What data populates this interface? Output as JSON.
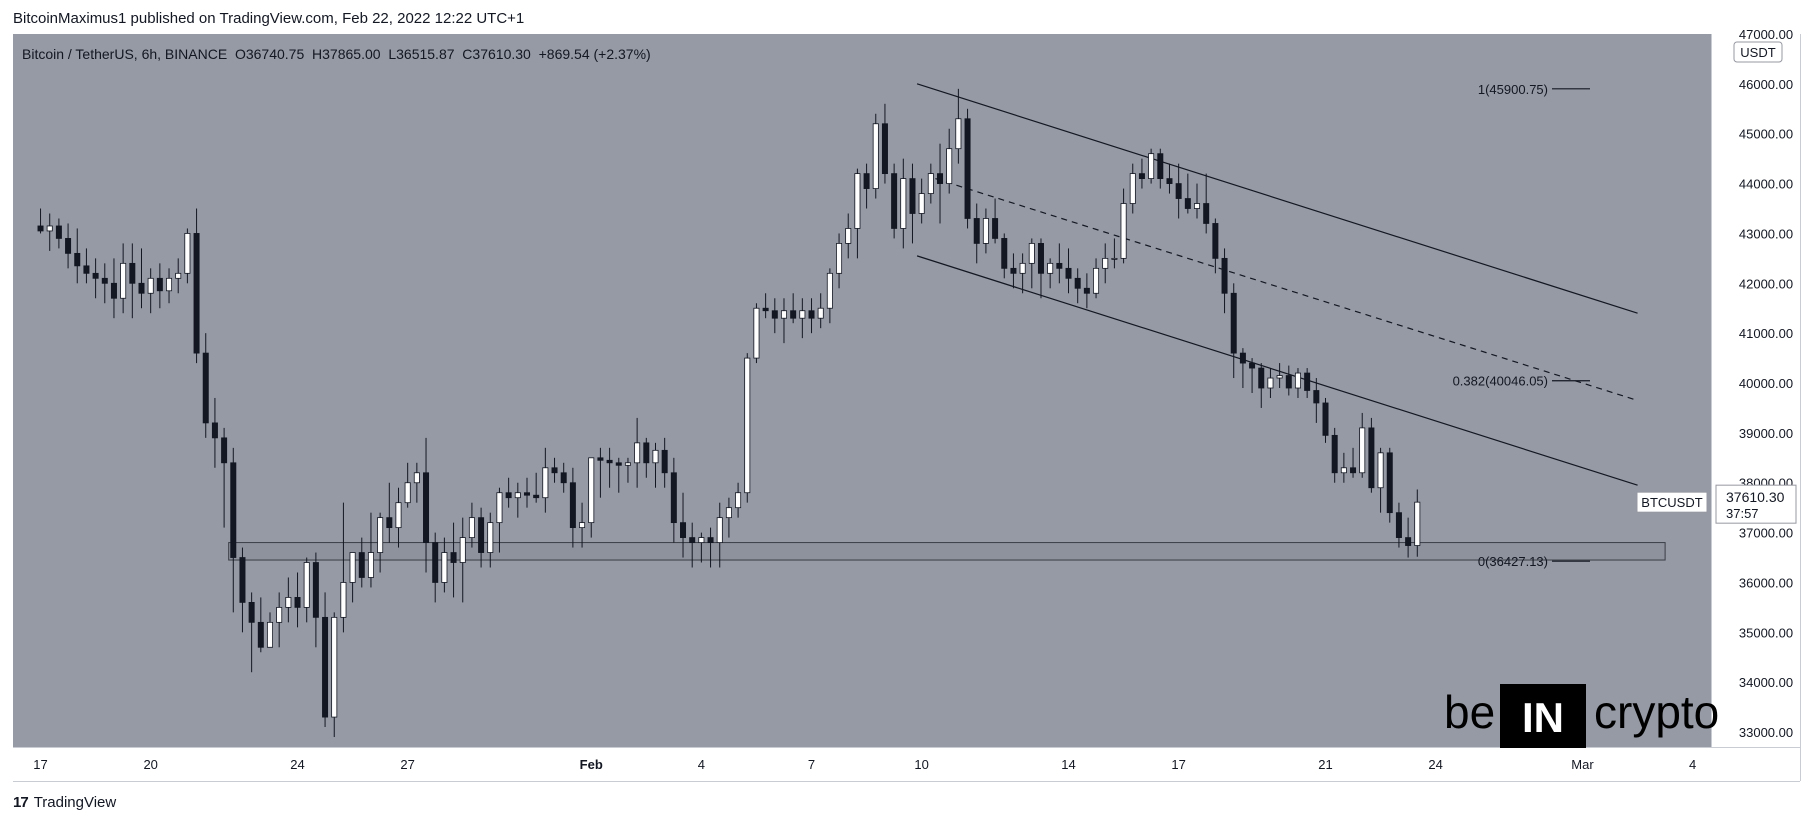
{
  "header": {
    "published_line": "BitcoinMaximus1 published on TradingView.com, Feb 22, 2022 12:22 UTC+1"
  },
  "footer": {
    "brand": "TradingView",
    "mark": "17"
  },
  "watermark": {
    "left": "be",
    "middle": "IN",
    "right": "crypto"
  },
  "colors": {
    "background": "#969aa5",
    "up": "#ffffff",
    "down": "#131722",
    "line": "#131722"
  },
  "chart_data": {
    "type": "candlestick",
    "symbol_line": {
      "title": "Bitcoin / TetherUS, 6h, BINANCE",
      "open_label": "O",
      "open": "36740.75",
      "high_label": "H",
      "high": "37865.00",
      "low_label": "L",
      "low": "36515.87",
      "close_label": "C",
      "close": "37610.30",
      "change": "+869.54 (+2.37%)"
    },
    "currency": "USDT",
    "ylim": [
      32700,
      47000
    ],
    "y_ticks": [
      "33000.00",
      "34000.00",
      "35000.00",
      "36000.00",
      "37000.00",
      "38000.00",
      "39000.00",
      "40000.00",
      "41000.00",
      "42000.00",
      "43000.00",
      "44000.00",
      "45000.00",
      "46000.00",
      "47000.00"
    ],
    "x_ticks": [
      {
        "label": "17",
        "t": 0
      },
      {
        "label": "20",
        "t": 12
      },
      {
        "label": "24",
        "t": 28
      },
      {
        "label": "27",
        "t": 40
      },
      {
        "label": "Feb",
        "t": 60
      },
      {
        "label": "4",
        "t": 72
      },
      {
        "label": "7",
        "t": 84
      },
      {
        "label": "10",
        "t": 96
      },
      {
        "label": "14",
        "t": 112
      },
      {
        "label": "17",
        "t": 124
      },
      {
        "label": "21",
        "t": 140
      },
      {
        "label": "24",
        "t": 152
      },
      {
        "label": "Mar",
        "t": 168
      },
      {
        "label": "4",
        "t": 180
      }
    ],
    "x_range": [
      -3,
      182
    ],
    "last_price": {
      "symbol": "BTCUSDT",
      "value": "37610.30",
      "countdown": "37:57"
    },
    "fib_levels": [
      {
        "label": "1(45900.75)",
        "value": 45900.75
      },
      {
        "label": "0.382(40046.05)",
        "value": 40046.05
      },
      {
        "label": "0(36427.13)",
        "value": 36427.13
      }
    ],
    "support_zone": {
      "top": 36800,
      "bottom": 36450,
      "t_start": 20.5,
      "t_end": 177
    },
    "channel": {
      "upper": {
        "t1": 95.5,
        "p1": 46000,
        "t2": 174,
        "p2": 41400
      },
      "middle": {
        "t1": 97.5,
        "p1": 44100,
        "t2": 174,
        "p2": 39650
      },
      "lower": {
        "t1": 95.5,
        "p1": 42550,
        "t2": 174,
        "p2": 37950
      }
    },
    "candles": [
      [
        43150,
        43500,
        43000,
        43050
      ],
      [
        43050,
        43400,
        42650,
        43150
      ],
      [
        43150,
        43300,
        42700,
        42900
      ],
      [
        42900,
        43200,
        42300,
        42600
      ],
      [
        42600,
        43100,
        42000,
        42350
      ],
      [
        42350,
        42700,
        42000,
        42200
      ],
      [
        42200,
        42500,
        41700,
        42100
      ],
      [
        42100,
        42400,
        41600,
        42000
      ],
      [
        42000,
        42500,
        41300,
        41700
      ],
      [
        41700,
        42800,
        41400,
        42400
      ],
      [
        42400,
        42800,
        41300,
        42000
      ],
      [
        42000,
        42700,
        41500,
        41800
      ],
      [
        41800,
        42300,
        41400,
        42100
      ],
      [
        42100,
        42400,
        41500,
        41850
      ],
      [
        41850,
        42300,
        41600,
        42100
      ],
      [
        42100,
        42500,
        41800,
        42200
      ],
      [
        42200,
        43100,
        42000,
        43000
      ],
      [
        43000,
        43500,
        40400,
        40600
      ],
      [
        40600,
        41000,
        38900,
        39200
      ],
      [
        39200,
        39700,
        38300,
        38900
      ],
      [
        38900,
        39100,
        37100,
        38400
      ],
      [
        38400,
        38700,
        35400,
        36500
      ],
      [
        36500,
        36700,
        35000,
        35600
      ],
      [
        35600,
        35800,
        34200,
        35200
      ],
      [
        35200,
        35700,
        34600,
        34700
      ],
      [
        34700,
        35400,
        34700,
        35200
      ],
      [
        35200,
        35800,
        34700,
        35500
      ],
      [
        35500,
        36100,
        35200,
        35700
      ],
      [
        35700,
        36200,
        35100,
        35500
      ],
      [
        35500,
        36500,
        35200,
        36400
      ],
      [
        36400,
        36600,
        34700,
        35300
      ],
      [
        35300,
        35800,
        33100,
        33300
      ],
      [
        33300,
        35400,
        32900,
        35300
      ],
      [
        35300,
        37600,
        35000,
        36000
      ],
      [
        36000,
        36600,
        35600,
        36600
      ],
      [
        36600,
        36900,
        35900,
        36100
      ],
      [
        36100,
        37400,
        35900,
        36600
      ],
      [
        36600,
        37400,
        36200,
        37300
      ],
      [
        37300,
        38000,
        36800,
        37100
      ],
      [
        37100,
        37900,
        36700,
        37600
      ],
      [
        37600,
        38400,
        37500,
        38000
      ],
      [
        38000,
        38400,
        37600,
        38200
      ],
      [
        38200,
        38900,
        36200,
        36800
      ],
      [
        36800,
        37000,
        35600,
        36000
      ],
      [
        36000,
        36900,
        35800,
        36600
      ],
      [
        36600,
        37200,
        35700,
        36400
      ],
      [
        36400,
        37300,
        35600,
        36900
      ],
      [
        36900,
        37600,
        36700,
        37300
      ],
      [
        37300,
        37500,
        36300,
        36600
      ],
      [
        36600,
        37400,
        36300,
        37200
      ],
      [
        37200,
        37900,
        36600,
        37800
      ],
      [
        37800,
        38100,
        37500,
        37700
      ],
      [
        37700,
        38000,
        37300,
        37800
      ],
      [
        37800,
        38100,
        37500,
        37750
      ],
      [
        37750,
        38200,
        37600,
        37700
      ],
      [
        37700,
        38700,
        37400,
        38300
      ],
      [
        38300,
        38500,
        38000,
        38200
      ],
      [
        38200,
        38400,
        37800,
        38000
      ],
      [
        38000,
        38300,
        36700,
        37100
      ],
      [
        37100,
        37600,
        36700,
        37200
      ],
      [
        37200,
        38500,
        36900,
        38500
      ],
      [
        38500,
        38700,
        37700,
        38450
      ],
      [
        38450,
        38700,
        37900,
        38400
      ],
      [
        38400,
        38500,
        37800,
        38350
      ],
      [
        38350,
        38500,
        38000,
        38400
      ],
      [
        38400,
        39300,
        37900,
        38800
      ],
      [
        38800,
        38900,
        38100,
        38400
      ],
      [
        38400,
        38800,
        37900,
        38650
      ],
      [
        38650,
        38900,
        37900,
        38200
      ],
      [
        38200,
        38500,
        36800,
        37200
      ],
      [
        37200,
        37800,
        36500,
        36900
      ],
      [
        36900,
        37200,
        36300,
        36800
      ],
      [
        36800,
        37000,
        36400,
        36900
      ],
      [
        36900,
        37100,
        36300,
        36800
      ],
      [
        36800,
        37600,
        36300,
        37300
      ],
      [
        37300,
        37700,
        36900,
        37500
      ],
      [
        37500,
        38000,
        37300,
        37800
      ],
      [
        37800,
        40600,
        37600,
        40500
      ],
      [
        40500,
        41600,
        40400,
        41500
      ],
      [
        41500,
        41800,
        41300,
        41450
      ],
      [
        41450,
        41700,
        41000,
        41300
      ],
      [
        41300,
        41700,
        40800,
        41450
      ],
      [
        41450,
        41800,
        41200,
        41300
      ],
      [
        41300,
        41700,
        40900,
        41450
      ],
      [
        41450,
        41700,
        41000,
        41300
      ],
      [
        41300,
        41800,
        41100,
        41500
      ],
      [
        41500,
        42300,
        41200,
        42200
      ],
      [
        42200,
        43000,
        41900,
        42800
      ],
      [
        42800,
        43400,
        42500,
        43100
      ],
      [
        43100,
        44300,
        42500,
        44200
      ],
      [
        44200,
        44400,
        43500,
        43900
      ],
      [
        43900,
        45400,
        43700,
        45200
      ],
      [
        45200,
        45600,
        44000,
        44200
      ],
      [
        44200,
        44400,
        42900,
        43100
      ],
      [
        43100,
        44500,
        42700,
        44100
      ],
      [
        44100,
        44400,
        42800,
        43400
      ],
      [
        43400,
        44100,
        43200,
        43800
      ],
      [
        43800,
        44400,
        43600,
        44200
      ],
      [
        44200,
        44800,
        43200,
        44000
      ],
      [
        44000,
        45100,
        43800,
        44700
      ],
      [
        44700,
        45900,
        44400,
        45300
      ],
      [
        45300,
        45500,
        43100,
        43300
      ],
      [
        43300,
        43600,
        42400,
        42800
      ],
      [
        42800,
        43500,
        42600,
        43300
      ],
      [
        43300,
        43700,
        42800,
        42900
      ],
      [
        42900,
        43000,
        42100,
        42300
      ],
      [
        42300,
        42600,
        41900,
        42200
      ],
      [
        42200,
        42600,
        41800,
        42400
      ],
      [
        42400,
        42900,
        41900,
        42800
      ],
      [
        42800,
        42900,
        41700,
        42200
      ],
      [
        42200,
        42500,
        41900,
        42400
      ],
      [
        42400,
        42800,
        42000,
        42300
      ],
      [
        42300,
        42700,
        41800,
        42100
      ],
      [
        42100,
        42300,
        41600,
        41900
      ],
      [
        41900,
        42200,
        41500,
        41800
      ],
      [
        41800,
        42500,
        41700,
        42300
      ],
      [
        42300,
        42800,
        42000,
        42500
      ],
      [
        42500,
        42900,
        42300,
        42500
      ],
      [
        42500,
        43900,
        42400,
        43600
      ],
      [
        43600,
        44400,
        43400,
        44200
      ],
      [
        44200,
        44500,
        43900,
        44100
      ],
      [
        44100,
        44700,
        44000,
        44600
      ],
      [
        44600,
        44700,
        43900,
        44100
      ],
      [
        44100,
        44400,
        43800,
        44000
      ],
      [
        44000,
        44400,
        43300,
        43700
      ],
      [
        43700,
        44200,
        43400,
        43500
      ],
      [
        43500,
        44000,
        43300,
        43600
      ],
      [
        43600,
        44200,
        43000,
        43200
      ],
      [
        43200,
        43300,
        42200,
        42500
      ],
      [
        42500,
        42700,
        41400,
        41800
      ],
      [
        41800,
        42000,
        40100,
        40600
      ],
      [
        40600,
        40700,
        39900,
        40400
      ],
      [
        40400,
        40500,
        39800,
        40300
      ],
      [
        40300,
        40400,
        39500,
        39900
      ],
      [
        39900,
        40300,
        39700,
        40100
      ],
      [
        40100,
        40400,
        39900,
        40150
      ],
      [
        40150,
        40350,
        39750,
        39900
      ],
      [
        39900,
        40300,
        39700,
        40200
      ],
      [
        40200,
        40300,
        39700,
        39850
      ],
      [
        39850,
        40100,
        39200,
        39600
      ],
      [
        39600,
        39700,
        38800,
        38950
      ],
      [
        38950,
        39100,
        38000,
        38200
      ],
      [
        38200,
        38600,
        38000,
        38300
      ],
      [
        38300,
        38700,
        38100,
        38200
      ],
      [
        38200,
        39400,
        38100,
        39100
      ],
      [
        39100,
        39300,
        37800,
        37900
      ],
      [
        37900,
        38700,
        37400,
        38600
      ],
      [
        38600,
        38700,
        37200,
        37400
      ],
      [
        37400,
        37600,
        36700,
        36900
      ],
      [
        36900,
        37300,
        36500,
        36740
      ],
      [
        36740.75,
        37865,
        36515.87,
        37610.3
      ]
    ]
  }
}
